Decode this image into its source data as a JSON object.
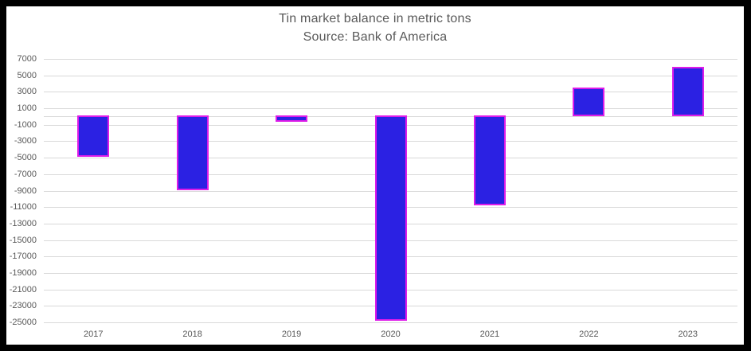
{
  "frame": {
    "color": "#000000",
    "background": "#ffffff"
  },
  "title": {
    "text": "Tin market balance in metric tons",
    "subtitle": "Source: Bank of America",
    "color": "#595959"
  },
  "chart_data": {
    "type": "bar",
    "title": "Tin market balance in metric tons",
    "subtitle": "Source: Bank of America",
    "categories": [
      "2017",
      "2018",
      "2019",
      "2020",
      "2021",
      "2022",
      "2023"
    ],
    "values": [
      -4900,
      -9000,
      -700,
      -24800,
      -10800,
      3400,
      5900
    ],
    "xlabel": "",
    "ylabel": "",
    "ylim": [
      -25000,
      7000
    ],
    "ytick_step": 2000,
    "ytick_labels": [
      "7000",
      "5000",
      "3000",
      "1000",
      "-1000",
      "-3000",
      "-5000",
      "-7000",
      "-9000",
      "-11000",
      "-13000",
      "-15000",
      "-17000",
      "-19000",
      "-21000",
      "-23000",
      "-25000"
    ],
    "grid": true,
    "legend": false,
    "zero_axis_line": true,
    "colors": {
      "bar_fill": "#2b21e3",
      "bar_border": "#de1ce9",
      "gridline": "#d9d9d9",
      "axis_line": "#d9d9d9",
      "tick_label": "#595959"
    }
  }
}
